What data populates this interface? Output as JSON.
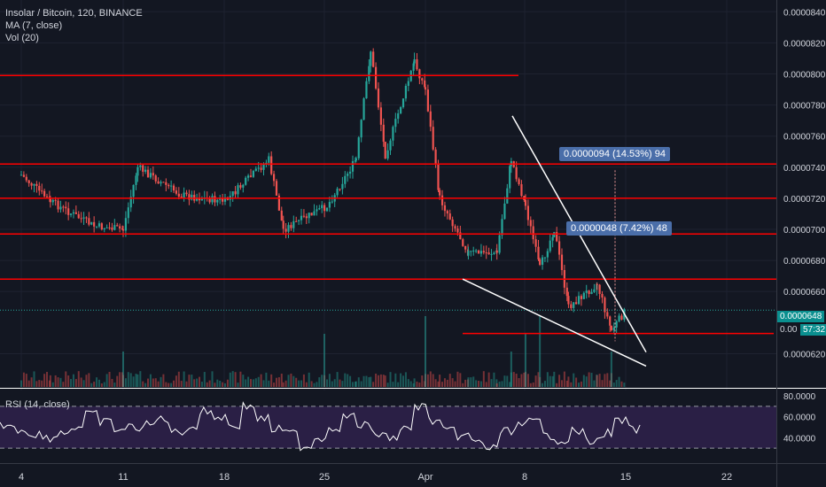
{
  "legend": {
    "title": "Insolar / Bitcoin, 120, BINANCE",
    "ma": "MA (7, close)",
    "vol": "Vol (20)",
    "rsi": "RSI (14, close)"
  },
  "measure_tags": [
    {
      "text": "0.0000094 (14.53%) 94"
    },
    {
      "text": "0.0000048 (7.42%) 48"
    }
  ],
  "price_chips": {
    "last": "0.0000648",
    "ma": "0.00",
    "timer": "57:32"
  },
  "colors": {
    "background": "#131722",
    "up": "#26a69a",
    "down": "#ef5350",
    "level_line": "#ff0000",
    "trend_line": "#ffffff",
    "rsi_fill": "#2a1f45",
    "rsi_line": "#ffffff"
  },
  "chart_data": [
    {
      "type": "candlestick",
      "title": "Insolar / Bitcoin, 120, BINANCE",
      "y_ticks": [
        "0.0000840",
        "0.0000820",
        "0.0000800",
        "0.0000780",
        "0.0000760",
        "0.0000740",
        "0.0000720",
        "0.0000700",
        "0.0000680",
        "0.0000660",
        "0.0000620"
      ],
      "ylim": [
        6.1e-05,
        8.43e-05
      ],
      "x_ticks": [
        "4",
        "11",
        "18",
        "25",
        "Apr",
        "8",
        "15",
        "22"
      ],
      "last_price": 6.48e-05,
      "horizontal_levels": [
        7.99e-05,
        7.42e-05,
        7.2e-05,
        6.97e-05,
        6.68e-05,
        6.33e-05
      ],
      "price_path": [
        {
          "x": "4",
          "close": 7.35e-05
        },
        {
          "x": "6",
          "close": 7.18e-05
        },
        {
          "x": "9",
          "close": 7.02e-05
        },
        {
          "x": "11",
          "close": 7e-05
        },
        {
          "x": "12",
          "close": 7.4e-05
        },
        {
          "x": "15",
          "close": 7.22e-05
        },
        {
          "x": "18",
          "close": 7.18e-05
        },
        {
          "x": "21",
          "close": 7.45e-05
        },
        {
          "x": "22",
          "close": 7e-05
        },
        {
          "x": "25",
          "close": 7.15e-05
        },
        {
          "x": "27",
          "close": 7.45e-05
        },
        {
          "x": "28",
          "close": 8.15e-05
        },
        {
          "x": "29",
          "close": 7.48e-05
        },
        {
          "x": "31",
          "close": 8.08e-05
        },
        {
          "x": "Apr",
          "close": 7.9e-05
        },
        {
          "x": "2",
          "close": 7.2e-05
        },
        {
          "x": "4",
          "close": 6.85e-05
        },
        {
          "x": "6",
          "close": 6.85e-05
        },
        {
          "x": "7",
          "close": 7.45e-05
        },
        {
          "x": "8",
          "close": 7.15e-05
        },
        {
          "x": "9",
          "close": 6.75e-05
        },
        {
          "x": "10",
          "close": 7e-05
        },
        {
          "x": "11",
          "close": 6.5e-05
        },
        {
          "x": "13",
          "close": 6.65e-05
        },
        {
          "x": "14",
          "close": 6.35e-05
        },
        {
          "x": "15",
          "close": 6.48e-05
        }
      ],
      "volume_spikes": [
        "11",
        "25",
        "Apr",
        "7",
        "8",
        "9",
        "14"
      ]
    },
    {
      "type": "line",
      "title": "RSI (14, close)",
      "y_ticks": [
        "80.0000",
        "60.0000",
        "40.0000"
      ],
      "ylim": [
        20,
        80
      ],
      "bands": [
        30,
        70
      ],
      "values": [
        52,
        48,
        44,
        40,
        45,
        50,
        62,
        55,
        48,
        50,
        52,
        58,
        45,
        50,
        65,
        60,
        52,
        70,
        58,
        48,
        44,
        32,
        40,
        50,
        60,
        52,
        44,
        40,
        48,
        70,
        56,
        46,
        42,
        36,
        30,
        46,
        52,
        55,
        42,
        38,
        46,
        36,
        44,
        56,
        48
      ]
    }
  ]
}
